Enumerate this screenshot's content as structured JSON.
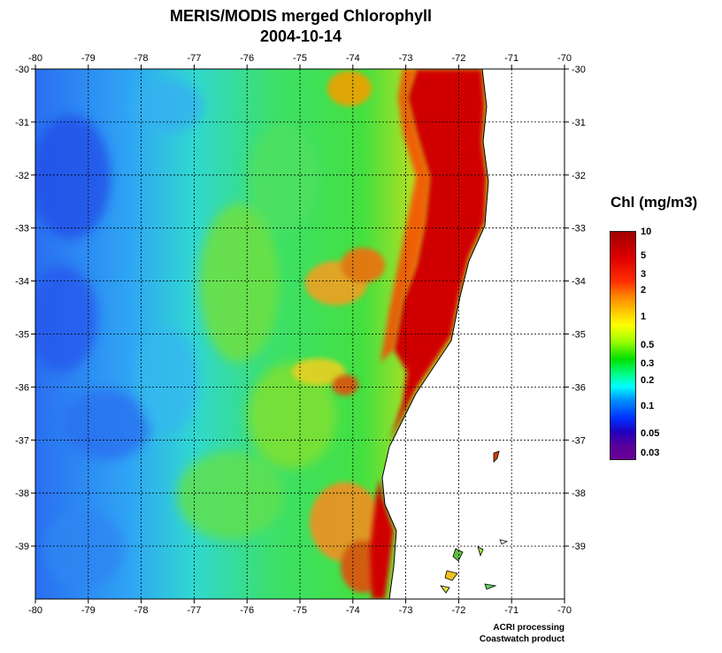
{
  "title": "MERIS/MODIS merged Chlorophyll",
  "date": "2004-10-14",
  "x_ticks": [
    "-80",
    "-79",
    "-78",
    "-77",
    "-76",
    "-75",
    "-74",
    "-73",
    "-72",
    "-71",
    "-70"
  ],
  "y_ticks": [
    "-30",
    "-31",
    "-32",
    "-33",
    "-34",
    "-35",
    "-36",
    "-37",
    "-38",
    "-39"
  ],
  "colorbar": {
    "title": "Chl (mg/m3)",
    "ticks": [
      "10",
      "5",
      "3",
      "2",
      "1",
      "0.5",
      "0.3",
      "0.2",
      "0.1",
      "0.05",
      "0.03"
    ]
  },
  "credits": {
    "line1": "ACRI processing",
    "line2": "Coastwatch product"
  },
  "colors": {
    "land": "#ffffff",
    "grid": "#000000",
    "oligotrophic": "#3a8cf0",
    "mesotrophic": "#40e040",
    "eutrophic": "#d00000"
  }
}
